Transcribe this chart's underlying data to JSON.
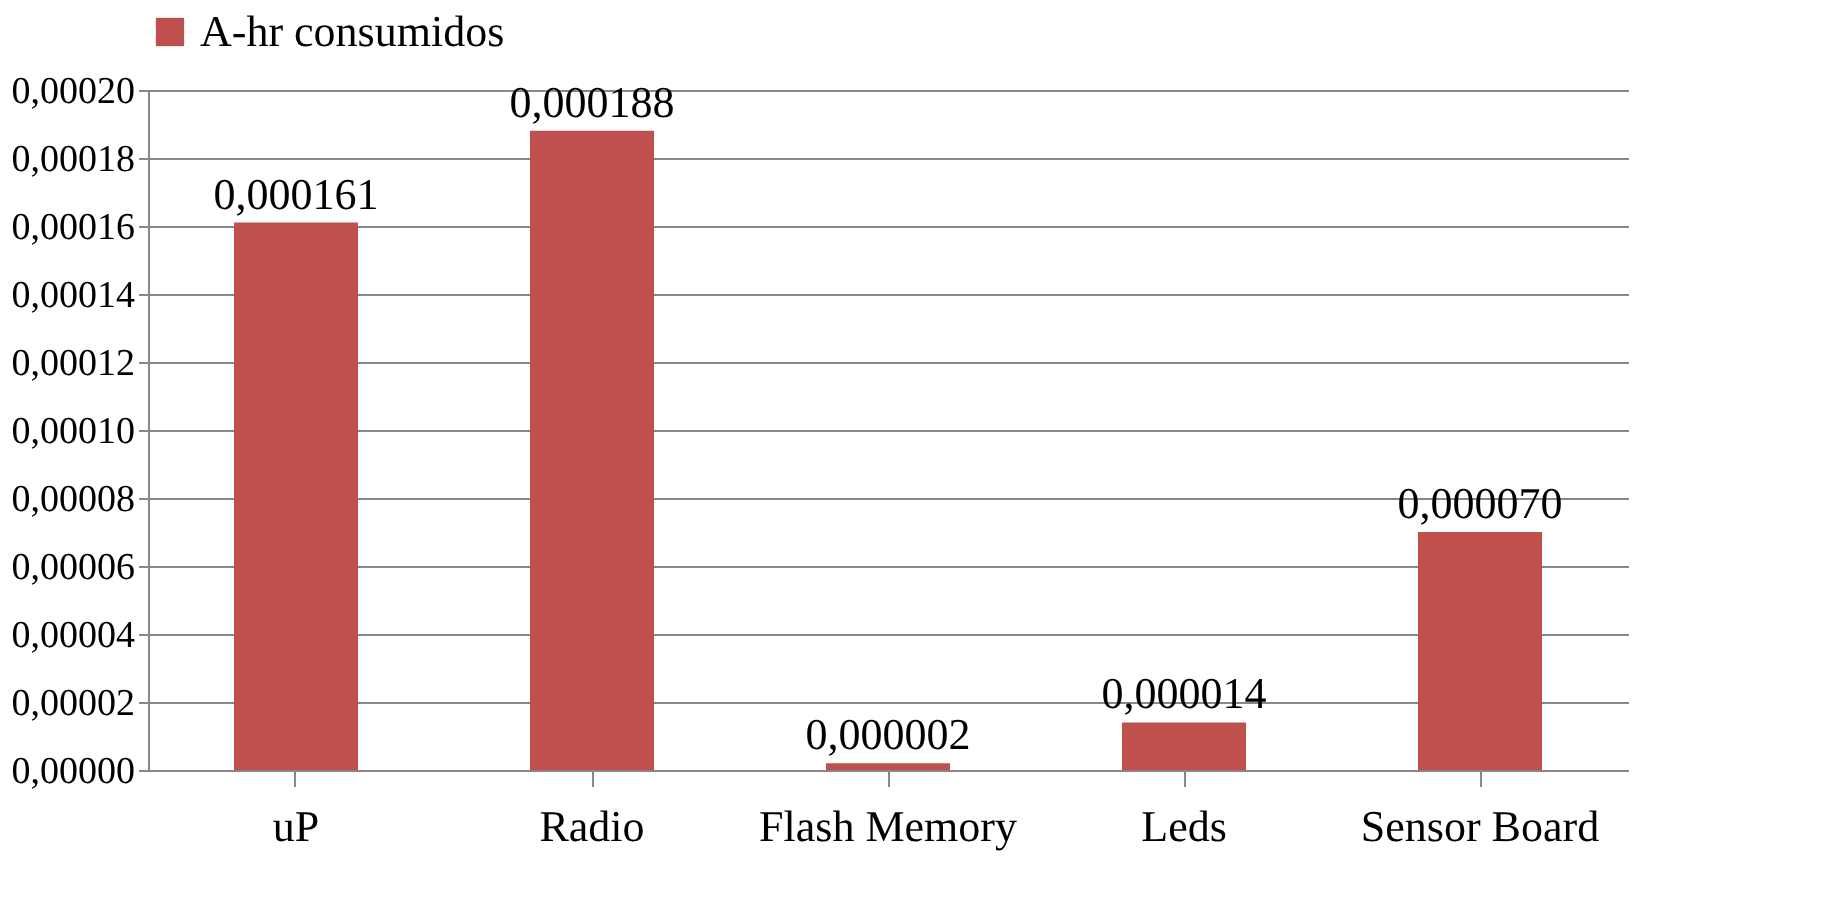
{
  "chart_data": {
    "type": "bar",
    "categories": [
      "uP",
      "Radio",
      "Flash Memory",
      "Leds",
      "Sensor Board"
    ],
    "series": [
      {
        "name": "A-hr consumidos",
        "color": "#c0504d",
        "values": [
          0.000161,
          0.000188,
          2e-06,
          1.4e-05,
          7e-05
        ],
        "value_labels": [
          "0,000161",
          "0,000188",
          "0,000002",
          "0,000014",
          "0,000070"
        ]
      }
    ],
    "ylim": [
      0,
      0.0002
    ],
    "yticks": [
      {
        "value": 0,
        "label": "0,00000"
      },
      {
        "value": 2e-05,
        "label": "0,00002"
      },
      {
        "value": 4e-05,
        "label": "0,00004"
      },
      {
        "value": 6e-05,
        "label": "0,00006"
      },
      {
        "value": 8e-05,
        "label": "0,00008"
      },
      {
        "value": 0.0001,
        "label": "0,00010"
      },
      {
        "value": 0.00012,
        "label": "0,00012"
      },
      {
        "value": 0.00014,
        "label": "0,00014"
      },
      {
        "value": 0.00016,
        "label": "0,00016"
      },
      {
        "value": 0.00018,
        "label": "0,00018"
      },
      {
        "value": 0.0002,
        "label": "0,00020"
      }
    ],
    "grid": "y",
    "legend": "top"
  }
}
